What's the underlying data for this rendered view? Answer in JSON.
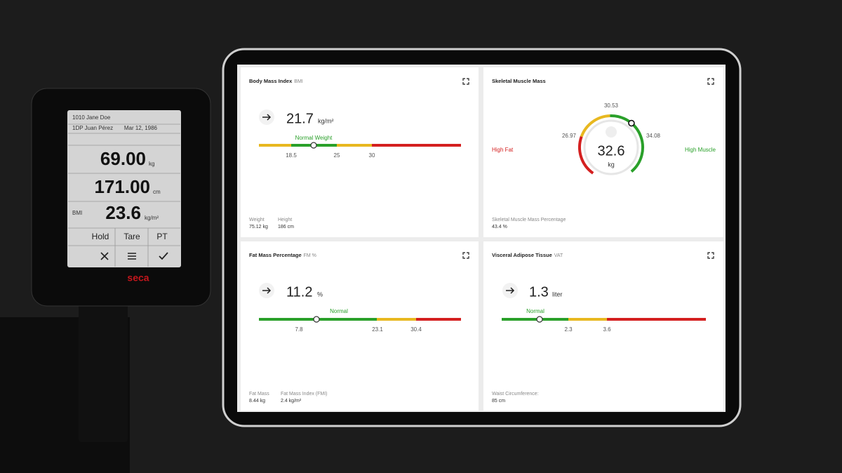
{
  "device": {
    "user_1": "1010 Jane Doe",
    "user_2": "1DP Juan Pérez",
    "date": "Mar 12, 1986",
    "weight": "69.00",
    "weight_unit": "kg",
    "height": "171.00",
    "height_unit": "cm",
    "bmi_label": "BMI",
    "bmi": "23.6",
    "bmi_unit": "kg/m²",
    "buttons": [
      "Hold",
      "Tare",
      "PT"
    ],
    "brand": "seca"
  },
  "cards": [
    {
      "title": "Body Mass Index",
      "subtitle": "BMI",
      "value": "21.7",
      "unit": "kg/m²",
      "range_label": "Normal Weight",
      "ticks": [
        "18.5",
        "25",
        "30"
      ],
      "footer": [
        {
          "label": "Weight",
          "value": "75.12 kg"
        },
        {
          "label": "Height",
          "value": "186 cm"
        }
      ]
    },
    {
      "title": "Skeletal Muscle Mass",
      "value": "32.6",
      "unit": "kg",
      "gauge_labels": [
        "30.53",
        "26.97",
        "34.08"
      ],
      "left_label": "High Fat",
      "right_label": "High Muscle",
      "footer": [
        {
          "label": "Skeletal Muscle Mass Percentage",
          "value": "43.4 %"
        }
      ]
    },
    {
      "title": "Fat Mass Percentage",
      "subtitle": "FM %",
      "value": "11.2",
      "unit": "%",
      "range_label": "Normal",
      "ticks": [
        "7.8",
        "23.1",
        "30.4"
      ],
      "footer": [
        {
          "label": "Fat Mass",
          "value": "8.44 kg"
        },
        {
          "label": "Fat Mass Index (FMI)",
          "value": "2.4 kg/m²"
        }
      ]
    },
    {
      "title": "Visceral Adipose Tissue",
      "subtitle": "VAT",
      "value": "1.3",
      "unit": "liter",
      "range_label": "Normal",
      "ticks": [
        "2.3",
        "3.6"
      ],
      "footer": [
        {
          "label": "Waist Circumference:",
          "value": "85 cm"
        }
      ]
    }
  ]
}
